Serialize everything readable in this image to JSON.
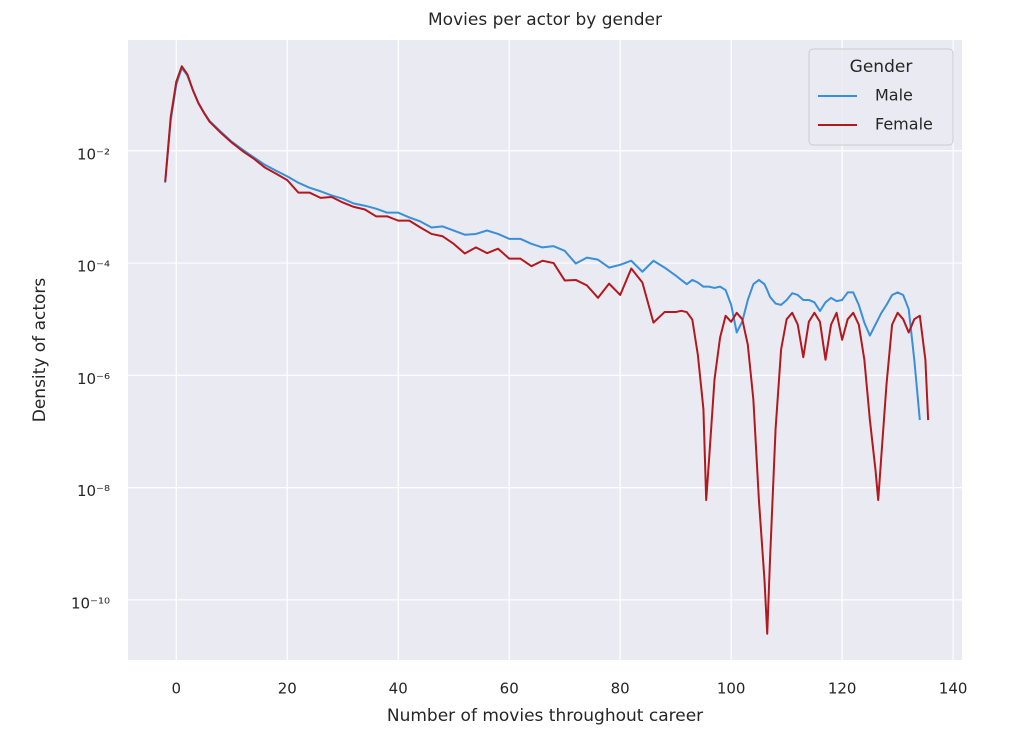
{
  "chart_data": {
    "type": "line",
    "title": "Movies per actor by gender",
    "xlabel": "Number of movies throughout career",
    "ylabel": "Density of actors",
    "legend_title": "Gender",
    "legend": "upper right",
    "grid": true,
    "yscale": "log",
    "xlim": [
      -8.7,
      141.6
    ],
    "ylim": [
      8.5e-12,
      0.94
    ],
    "xticks": [
      0,
      20,
      40,
      60,
      80,
      100,
      120,
      140
    ],
    "yticks": [
      {
        "value": 0.01,
        "label": "10⁻²"
      },
      {
        "value": 0.0001,
        "label": "10⁻⁴"
      },
      {
        "value": 1e-06,
        "label": "10⁻⁶"
      },
      {
        "value": 1e-08,
        "label": "10⁻⁸"
      },
      {
        "value": 1e-10,
        "label": "10⁻¹⁰"
      }
    ],
    "x": [
      -2,
      -1,
      0,
      1,
      2,
      3,
      4,
      5,
      6,
      8,
      10,
      12,
      14,
      16,
      18,
      20,
      22,
      24,
      26,
      28,
      30,
      32,
      34,
      36,
      38,
      40,
      42,
      44,
      46,
      48,
      50,
      52,
      54,
      56,
      58,
      60,
      62,
      64,
      66,
      68,
      70,
      72,
      74,
      76,
      78,
      80,
      82,
      84,
      86,
      88,
      90,
      91,
      92,
      93,
      94,
      95,
      95.5,
      96,
      97,
      98,
      99,
      100,
      101,
      102,
      103,
      104,
      105,
      106,
      106.5,
      107,
      108,
      109,
      110,
      111,
      112,
      113,
      114,
      115,
      116,
      117,
      118,
      119,
      120,
      121,
      122,
      123,
      124,
      125,
      126,
      126.5,
      127,
      128,
      129,
      130,
      131,
      132,
      133,
      134,
      135,
      135.5
    ],
    "series": [
      {
        "name": "Male",
        "color": "#3a8fd9",
        "values": [
          0.0027,
          0.035,
          0.15,
          0.3,
          0.22,
          0.12,
          0.071,
          0.048,
          0.034,
          0.022,
          0.0145,
          0.0104,
          0.0076,
          0.0056,
          0.0044,
          0.0035,
          0.0027,
          0.0022,
          0.0019,
          0.0016,
          0.0014,
          0.00115,
          0.00105,
          0.00093,
          0.00079,
          0.00079,
          0.00065,
          0.00055,
          0.00043,
          0.00045,
          0.00038,
          0.00032,
          0.00033,
          0.00038,
          0.00033,
          0.00027,
          0.00027,
          0.00022,
          0.00019,
          0.0002,
          0.000165,
          9.8e-05,
          0.000125,
          0.000115,
          8.3e-05,
          9.3e-05,
          0.00011,
          7e-05,
          0.00011,
          8.3e-05,
          6e-05,
          5e-05,
          4.2e-05,
          5e-05,
          4.5e-05,
          3.8e-05,
          3.8e-05,
          3.8e-05,
          3.6e-05,
          3.8e-05,
          3.3e-05,
          1.8e-05,
          5.8e-06,
          9.1e-06,
          2.2e-05,
          4.2e-05,
          5e-05,
          4.2e-05,
          3.3e-05,
          2.5e-05,
          1.9e-05,
          1.8e-05,
          2.2e-05,
          2.9e-05,
          2.7e-05,
          2.2e-05,
          2.2e-05,
          2e-05,
          1.4e-05,
          2e-05,
          2.4e-05,
          2.1e-05,
          2.2e-05,
          3e-05,
          3e-05,
          1.8e-05,
          8.7e-06,
          5.1e-06,
          8e-06,
          1e-05,
          1.26e-05,
          1.8e-05,
          2.7e-05,
          3e-05,
          2.7e-05,
          1.5e-05,
          1.9e-06,
          1.6e-07,
          null,
          null
        ]
      },
      {
        "name": "Female",
        "color": "#b2191e",
        "values": [
          0.0028,
          0.04,
          0.17,
          0.32,
          0.23,
          0.12,
          0.07,
          0.047,
          0.033,
          0.021,
          0.014,
          0.0098,
          0.0072,
          0.005,
          0.0039,
          0.003,
          0.0018,
          0.0018,
          0.00145,
          0.0015,
          0.0012,
          0.001,
          0.0009,
          0.00068,
          0.00068,
          0.00057,
          0.00057,
          0.00043,
          0.00033,
          0.0003,
          0.00022,
          0.000148,
          0.00019,
          0.00015,
          0.00018,
          0.00012,
          0.00012,
          8.8e-05,
          0.00011,
          0.0001,
          4.9e-05,
          5e-05,
          4e-05,
          2.4e-05,
          4.3e-05,
          2.7e-05,
          8e-05,
          4.5e-05,
          8.7e-06,
          1.34e-05,
          1.34e-05,
          1.41e-05,
          1.34e-05,
          9.8e-06,
          2.3e-06,
          2.5e-07,
          6e-09,
          3e-08,
          8.5e-07,
          4.7e-06,
          1.15e-05,
          9e-06,
          1.3e-05,
          1e-05,
          3.5e-06,
          3.7e-07,
          6e-09,
          2.3e-10,
          2.5e-11,
          5.2e-10,
          1.1e-07,
          2.9e-06,
          1e-05,
          1.3e-05,
          8e-06,
          2.1e-06,
          9e-06,
          1.3e-05,
          9e-06,
          1.9e-06,
          8e-06,
          1.3e-05,
          4.3e-06,
          1e-05,
          1.3e-05,
          8e-06,
          1.9e-06,
          1.6e-07,
          2.1e-08,
          6e-09,
          3e-08,
          7e-07,
          8e-06,
          1.3e-05,
          1e-05,
          5.8e-06,
          1e-05,
          1.15e-05,
          1.9e-06,
          1.6e-07
        ]
      }
    ]
  }
}
